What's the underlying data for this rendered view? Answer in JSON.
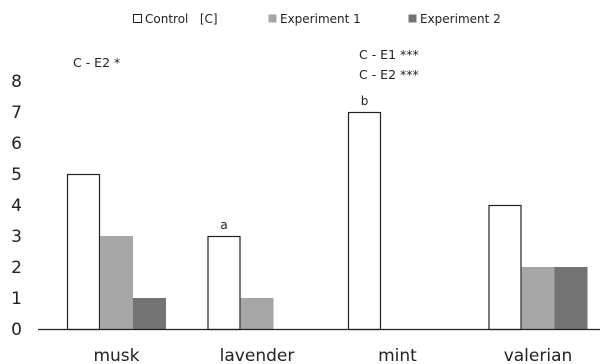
{
  "chart_data": {
    "type": "bar",
    "categories": [
      "musk",
      "lavender",
      "mint",
      "valerian"
    ],
    "series": [
      {
        "name": "Control   [C]",
        "color": "#ffffff",
        "stroke": "#222222",
        "values": [
          5,
          3,
          7,
          4
        ]
      },
      {
        "name": "Experiment 1",
        "color": "#a6a6a6",
        "stroke": "none",
        "values": [
          3,
          1,
          0,
          2
        ]
      },
      {
        "name": "Experiment 2",
        "color": "#737373",
        "stroke": "none",
        "values": [
          1,
          0,
          0,
          2
        ]
      }
    ],
    "ylim": [
      0,
      8
    ],
    "yticks": [
      0,
      1,
      2,
      3,
      4,
      5,
      6,
      7,
      8
    ],
    "grid": false,
    "legend_position": "top",
    "bar_labels": [
      {
        "category": "lavender",
        "series": "Control   [C]",
        "text": "a"
      },
      {
        "category": "mint",
        "series": "Control   [C]",
        "text": "b"
      }
    ],
    "annotations": [
      {
        "category": "musk",
        "lines": [
          "C - E2  *"
        ]
      },
      {
        "category": "mint",
        "lines": [
          "C - E1 ***",
          "C - E2 ***"
        ]
      }
    ]
  }
}
